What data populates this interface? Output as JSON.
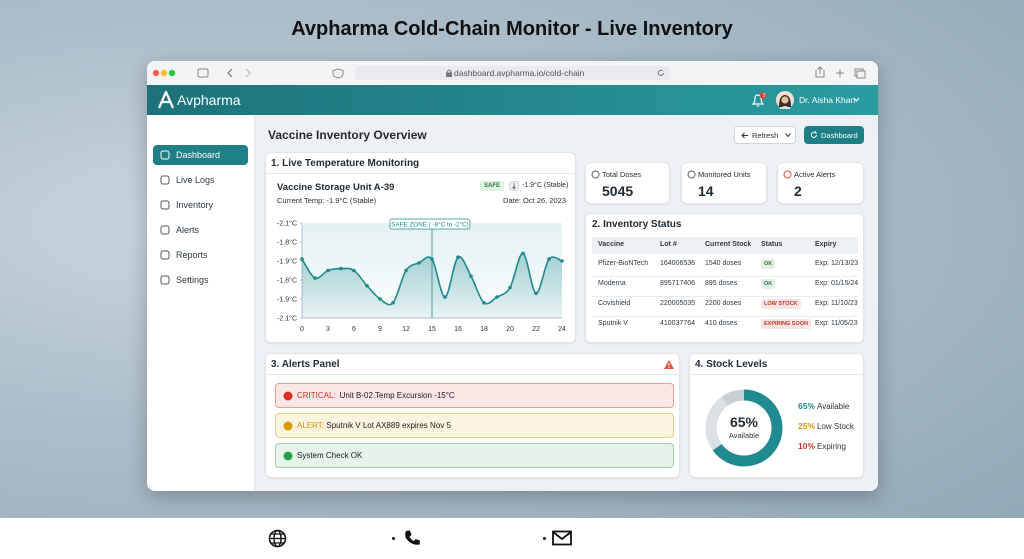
{
  "page_title": "Avpharma Cold-Chain Monitor - Live Inventory",
  "browser": {
    "url": "dashboard.avpharma.io/cold-chain"
  },
  "header": {
    "brand": "Avpharma",
    "notification_count": "3",
    "user": "Dr. Aisha Khan"
  },
  "sidebar": {
    "items": [
      "Dashboard",
      "Live Logs",
      "Inventory",
      "Alerts",
      "Reports",
      "Settings"
    ]
  },
  "main": {
    "title": "Vaccine Inventory Overview",
    "buttons": [
      "Refresh",
      "Dashboard"
    ]
  },
  "temperature_panel": {
    "title": "1. Live Temperature Monitoring",
    "unit": "Vaccine Storage Unit A-39",
    "status": "SAFE",
    "reading": "-1.9°C (Stable)",
    "current_temp": "Current Temp: -1.9°C (Stable)",
    "date": "Date: Oct 26, 2023"
  },
  "stats": [
    {
      "label": "Total Doses",
      "value": 5045
    },
    {
      "label": "Monitored Units",
      "value": 14
    },
    {
      "label": "Active Alerts",
      "value": 2
    }
  ],
  "inventory": {
    "title": "2. Inventory Status",
    "columns": [
      "Vaccine",
      "Lot #",
      "Current Stock",
      "Status",
      "Expiry"
    ],
    "rows": [
      [
        "Pfizer-BioNTech",
        "164006536",
        "1540 doses",
        "OK",
        "Exp: 12/13/23"
      ],
      [
        "Moderna",
        "895717406",
        "895 doses",
        "OK",
        "Exp: 01/15/24"
      ],
      [
        "Covishield",
        "220005035",
        "2200 doses",
        "LOW STOCK",
        "Exp: 11/10/23"
      ],
      [
        "Sputnik V",
        "410037764",
        "410 doses",
        "EXPIRING SOON",
        "Exp: 11/05/23"
      ]
    ],
    "status_colors": [
      "#2a7a3b",
      "#2a7a3b",
      "#c0392b",
      "#c0392b"
    ]
  },
  "alerts": {
    "title": "3. Alerts Panel",
    "items": [
      {
        "label": "CRITICAL:",
        "text": "Unit B-02 Temp Excursion -15°C",
        "color": "#d93025"
      },
      {
        "label": "ALERT:",
        "text": "Sputnik V Lot AX889 expires Nov 5",
        "color": "#d49a00"
      },
      {
        "text": "System Check OK",
        "color": "#2e9d4a"
      }
    ]
  },
  "stock_panel": {
    "title": "4. Stock Levels"
  },
  "chart_data": [
    {
      "type": "line",
      "annotation": "SAFE ZONE ( -8°C to -2°C)",
      "color": "#1f8a8f",
      "categories": [
        "0",
        null,
        "3",
        null,
        "6",
        null,
        "9",
        null,
        "12",
        null,
        "15",
        null,
        "16",
        null,
        "18",
        null,
        "20",
        null,
        "22",
        null,
        "24"
      ],
      "values": [
        3.1,
        2.1,
        2.5,
        2.6,
        2.5,
        1.7,
        1.0,
        0.8,
        2.5,
        2.9,
        3.1,
        1.1,
        3.2,
        2.2,
        0.8,
        1.1,
        1.6,
        3.4,
        1.3,
        3.1,
        3.0
      ],
      "ylim": [
        0,
        5
      ],
      "yticks": [
        {
          "value": 0,
          "label": "-2.1°C"
        },
        {
          "value": 1,
          "label": "-1.9°C"
        },
        {
          "value": 2,
          "label": "-1.8°C"
        },
        {
          "value": 3,
          "label": "-1.9°C"
        },
        {
          "value": 4,
          "label": "-1.8°C"
        },
        {
          "value": 5,
          "label": "-2.1°C"
        }
      ]
    },
    {
      "type": "pie",
      "categories": [
        "Available",
        "Low Stock",
        "Expiring"
      ],
      "values": [
        65,
        25,
        10
      ],
      "value_labels": [
        "65%",
        "25%",
        "10%"
      ],
      "colors": [
        "#1f8a8f",
        "#dbe0e4",
        "#c8d0d6"
      ],
      "label_colors": [
        "#1f8a8f",
        "#d49a00",
        "#c0392b"
      ]
    }
  ]
}
